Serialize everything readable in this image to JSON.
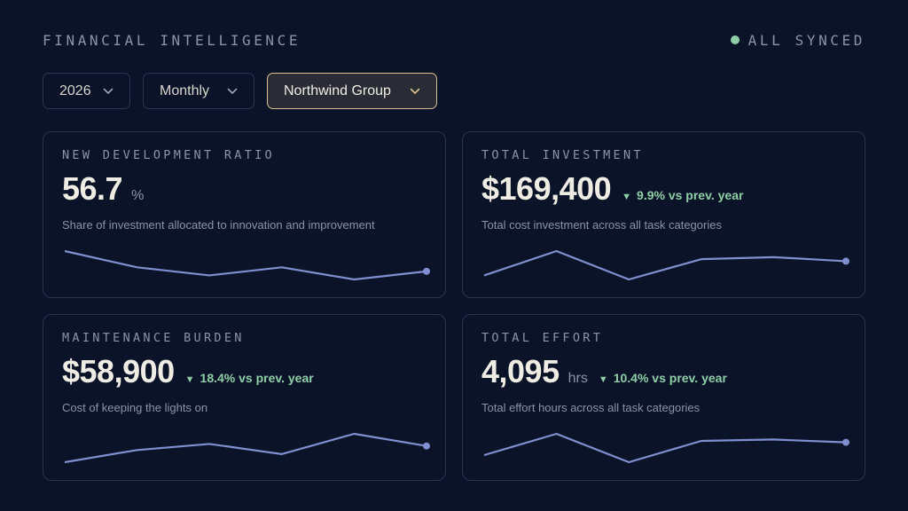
{
  "header": {
    "title": "FINANCIAL INTELLIGENCE",
    "sync_status": "ALL SYNCED",
    "sync_color": "#8fcfa6"
  },
  "filters": {
    "year": "2026",
    "period": "Monthly",
    "group": "Northwind Group"
  },
  "colors": {
    "accent": "#d6c08c",
    "positive": "#8fcfa6",
    "sparkline": "#7f8fcf",
    "background": "#0b1329"
  },
  "cards": [
    {
      "label": "NEW DEVELOPMENT RATIO",
      "value": "56.7",
      "unit": "%",
      "change": "",
      "description": "Share of investment allocated to innovation and improvement",
      "sparkline": [
        56.9,
        56.7,
        56.6,
        56.7,
        56.55,
        56.65
      ]
    },
    {
      "label": "TOTAL INVESTMENT",
      "value": "$169,400",
      "unit": "",
      "change": "9.9% vs prev. year",
      "description": "Total cost investment across all task categories",
      "sparkline": [
        160000,
        172000,
        158000,
        168000,
        169000,
        167000
      ]
    },
    {
      "label": "MAINTENANCE BURDEN",
      "value": "$58,900",
      "unit": "",
      "change": "18.4% vs prev. year",
      "description": "Cost of keeping the lights on",
      "sparkline": [
        50000,
        56000,
        59000,
        54000,
        64000,
        58000
      ]
    },
    {
      "label": "TOTAL EFFORT",
      "value": "4,095",
      "unit": "hrs",
      "change": "10.4% vs prev. year",
      "description": "Total effort hours across all task categories",
      "sparkline": [
        3900,
        4200,
        3800,
        4100,
        4120,
        4080
      ]
    }
  ]
}
